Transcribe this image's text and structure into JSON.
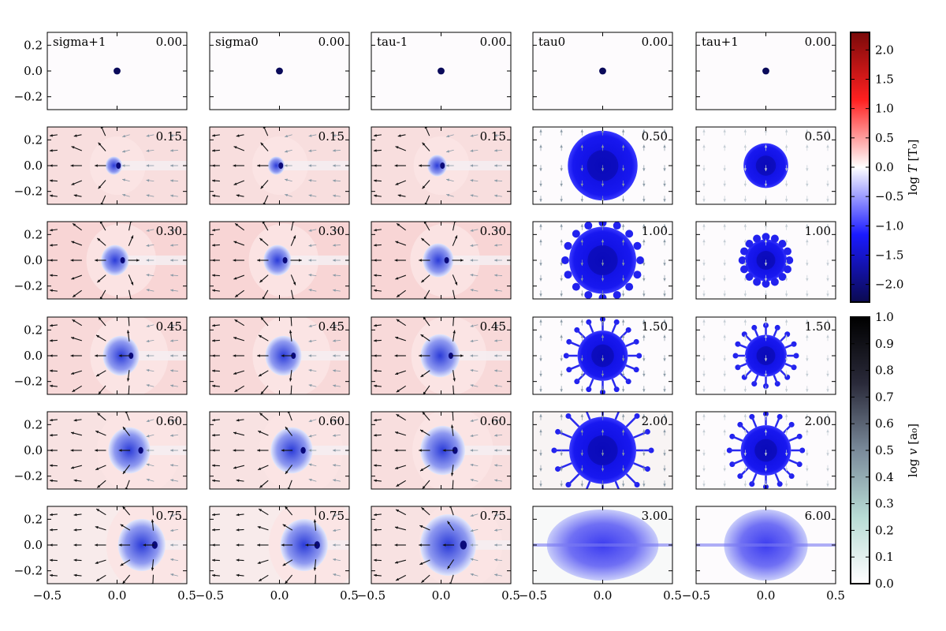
{
  "chart_data": {
    "type": "heatmap",
    "description_grid": "6x5 small multiples",
    "x_range": [
      -0.5,
      0.5
    ],
    "y_range": [
      -0.3,
      0.3
    ],
    "x_ticks": [
      -0.5,
      0.0,
      0.5
    ],
    "x_tick_labels": [
      "−0.5",
      "0.0",
      "0.5"
    ],
    "y_ticks": [
      0.2,
      0.0,
      -0.2
    ],
    "y_tick_labels": [
      "0.2",
      "0.0",
      "−0.2"
    ],
    "columns": [
      {
        "name": "sigma+1",
        "times": [
          "0.00",
          "0.15",
          "0.30",
          "0.45",
          "0.60",
          "0.75"
        ],
        "blob_x": [
          0.0,
          0.01,
          0.04,
          0.1,
          0.17,
          0.27
        ],
        "blob_r": [
          0.025,
          0.06,
          0.1,
          0.13,
          0.15,
          0.17
        ],
        "shell_r": [
          0,
          0.2,
          0.25,
          0.28,
          0.3,
          0.33
        ],
        "bg_temp": [
          0.0,
          0.35,
          0.45,
          0.4,
          0.3,
          0.2
        ],
        "style": "tail"
      },
      {
        "name": "sigma0",
        "times": [
          "0.00",
          "0.15",
          "0.30",
          "0.45",
          "0.60",
          "0.75"
        ],
        "blob_x": [
          0.0,
          0.01,
          0.04,
          0.1,
          0.17,
          0.27
        ],
        "blob_r": [
          0.025,
          0.06,
          0.1,
          0.13,
          0.15,
          0.17
        ],
        "shell_r": [
          0,
          0.2,
          0.25,
          0.28,
          0.3,
          0.33
        ],
        "bg_temp": [
          0.0,
          0.35,
          0.45,
          0.4,
          0.3,
          0.2
        ],
        "style": "tail"
      },
      {
        "name": "tau-1",
        "times": [
          "0.00",
          "0.15",
          "0.30",
          "0.45",
          "0.60",
          "0.75"
        ],
        "blob_x": [
          0.0,
          0.01,
          0.04,
          0.07,
          0.1,
          0.16
        ],
        "blob_r": [
          0.025,
          0.07,
          0.11,
          0.14,
          0.16,
          0.2
        ],
        "shell_r": [
          0,
          0.2,
          0.25,
          0.27,
          0.29,
          0.3
        ],
        "bg_temp": [
          0.0,
          0.35,
          0.45,
          0.4,
          0.35,
          0.3
        ],
        "style": "tail"
      },
      {
        "name": "tau0",
        "times": [
          "0.00",
          "0.50",
          "1.00",
          "1.50",
          "2.00",
          "3.00"
        ],
        "blob_x": [
          0.0,
          0.0,
          0.0,
          0.0,
          0.0,
          0.0
        ],
        "blob_r": [
          0.025,
          0.25,
          0.24,
          0.18,
          0.24,
          0.4
        ],
        "shell_r": [
          0,
          0,
          0,
          0,
          0,
          0
        ],
        "bg_temp": [
          0.0,
          0.0,
          0.0,
          0.0,
          0.1,
          0.05
        ],
        "style": "cloud"
      },
      {
        "name": "tau+1",
        "times": [
          "0.00",
          "0.50",
          "1.00",
          "1.50",
          "2.00",
          "6.00"
        ],
        "blob_x": [
          0.0,
          0.0,
          0.0,
          0.0,
          0.0,
          0.0
        ],
        "blob_r": [
          0.025,
          0.16,
          0.15,
          0.15,
          0.18,
          0.3
        ],
        "shell_r": [
          0,
          0,
          0,
          0,
          0,
          0
        ],
        "bg_temp": [
          0.0,
          0.0,
          0.0,
          0.0,
          0.0,
          0.0
        ],
        "style": "cloud"
      }
    ],
    "colorbars": [
      {
        "label": "log T [T₀]",
        "label_main": "log ",
        "label_var": "T",
        "label_unit": "[T₀]",
        "range": [
          -2.3,
          2.3
        ],
        "ticks": [
          2.0,
          1.5,
          1.0,
          0.5,
          0.0,
          -0.5,
          -1.0,
          -1.5,
          -2.0
        ],
        "tick_labels": [
          "2.0",
          "1.5",
          "1.0",
          "0.5",
          "0.0",
          "−0.5",
          "−1.0",
          "−1.5",
          "−2.0"
        ],
        "colors": [
          "#0b0a50",
          "#1a1aff",
          "#ffffff",
          "#ff2020",
          "#7a0a0a"
        ]
      },
      {
        "label": "log v [a₀]",
        "label_main": "log ",
        "label_var": "v",
        "label_unit": "[a₀]",
        "range": [
          0.0,
          1.0
        ],
        "ticks": [
          1.0,
          0.9,
          0.8,
          0.7,
          0.6,
          0.5,
          0.4,
          0.3,
          0.2,
          0.1,
          0.0
        ],
        "tick_labels": [
          "1.0",
          "0.9",
          "0.8",
          "0.7",
          "0.6",
          "0.5",
          "0.4",
          "0.3",
          "0.2",
          "0.1",
          "0.0"
        ],
        "colors": [
          "#ffffff",
          "#b8dcd5",
          "#7a8a9a",
          "#2a2a3a",
          "#000000"
        ]
      }
    ]
  }
}
